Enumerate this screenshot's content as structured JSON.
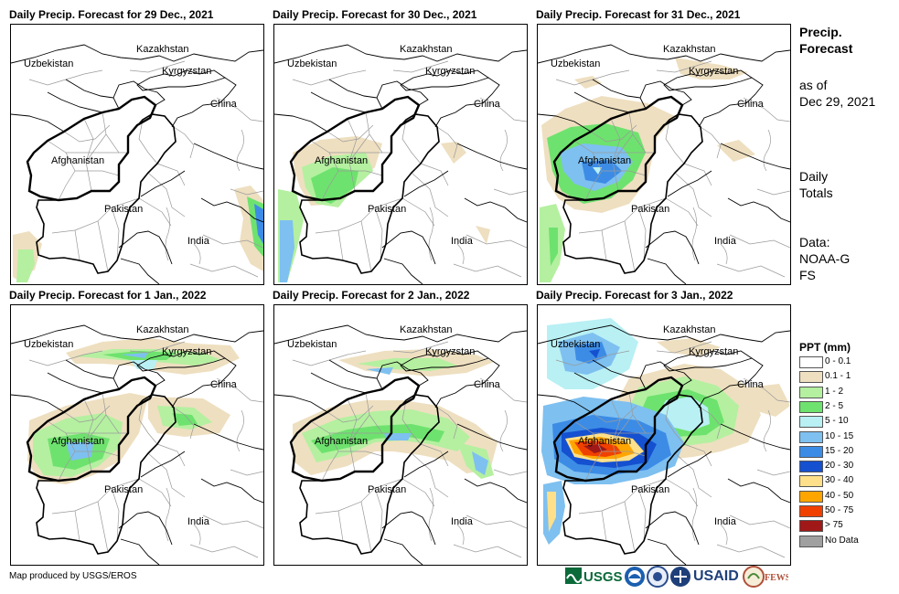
{
  "panels": [
    {
      "title": "Daily Precip. Forecast for 29 Dec., 2021"
    },
    {
      "title": "Daily Precip. Forecast for 30 Dec., 2021"
    },
    {
      "title": "Daily Precip. Forecast for 31 Dec., 2021"
    },
    {
      "title": "Daily Precip. Forecast for 1 Jan., 2022"
    },
    {
      "title": "Daily Precip. Forecast for 2 Jan., 2022"
    },
    {
      "title": "Daily Precip. Forecast for 3 Jan., 2022"
    }
  ],
  "countries": {
    "kazakhstan": "Kazakhstan",
    "uzbekistan": "Uzbekistan",
    "kyrgyzstan": "Kyrgyzstan",
    "china": "China",
    "afghanistan": "Afghanistan",
    "pakistan": "Pakistan",
    "india": "India"
  },
  "side": {
    "title": "Precip. Forecast",
    "asof_label": "as of",
    "asof_date": "Dec 29, 2021",
    "totals": "Daily Totals",
    "data_label": "Data:",
    "data_source": "NOAA-GFS"
  },
  "legend": {
    "title": "PPT (mm)",
    "items": [
      {
        "label": "0 - 0.1",
        "color": "#ffffff"
      },
      {
        "label": "0.1 - 1",
        "color": "#eedfc0"
      },
      {
        "label": "1 - 2",
        "color": "#b4f0a0"
      },
      {
        "label": "2 - 5",
        "color": "#6ee26e"
      },
      {
        "label": "5 - 10",
        "color": "#b8f0f4"
      },
      {
        "label": "10 - 15",
        "color": "#7ec0f0"
      },
      {
        "label": "15 - 20",
        "color": "#3c8ce6"
      },
      {
        "label": "20 - 30",
        "color": "#1450d0"
      },
      {
        "label": "30 - 40",
        "color": "#fee08a"
      },
      {
        "label": "40 - 50",
        "color": "#ffa500"
      },
      {
        "label": "50 - 75",
        "color": "#f04000"
      },
      {
        "label": "> 75",
        "color": "#a01818"
      },
      {
        "label": "No Data",
        "color": "#a0a0a0"
      }
    ]
  },
  "footer": {
    "credit": "Map produced by USGS/EROS"
  },
  "logos": [
    "USGS",
    "NOAA",
    "DOS",
    "USAID",
    "FEWS NET"
  ]
}
